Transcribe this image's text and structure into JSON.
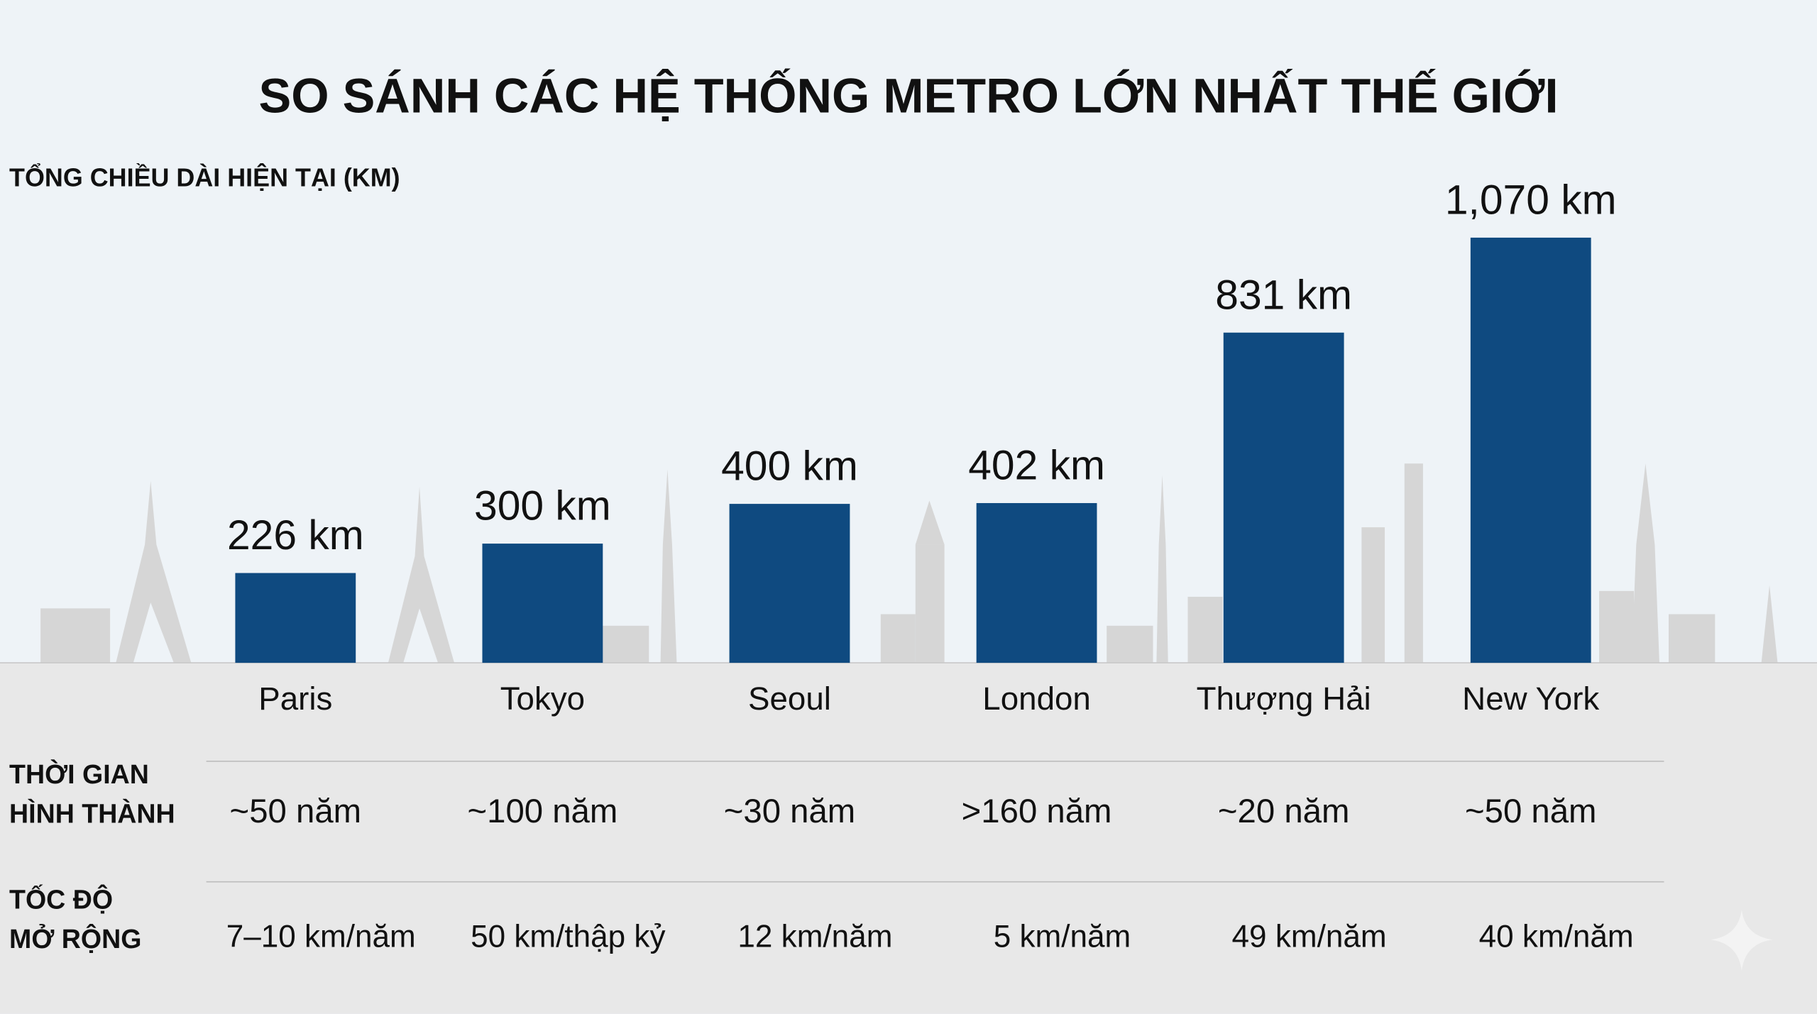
{
  "chart_data": {
    "type": "bar",
    "title": "SO SÁNH CÁC HỆ THỐNG METRO LỚN NHẤT THẾ GIỚI",
    "y_label": "TỔNG CHIỀU DÀI HIỆN TẠI (KM)",
    "categories": [
      "Paris",
      "Tokyo",
      "Seoul",
      "London",
      "Thượng Hải",
      "New York"
    ],
    "values": [
      226,
      300,
      400,
      402,
      831,
      1070
    ],
    "value_labels": [
      "226 km",
      "300 km",
      "400 km",
      "402 km",
      "831 km",
      "1,070 km"
    ],
    "color": "#0f4a80"
  },
  "table": {
    "rows": [
      {
        "label": [
          "THỜI GIAN",
          "HÌNH THÀNH"
        ],
        "cells": [
          "~50 năm",
          "~100 năm",
          "~30 năm",
          ">160 năm",
          "~20 năm",
          "~50 năm"
        ]
      },
      {
        "label": [
          "TỐC ĐỘ",
          "MỞ RỘNG"
        ],
        "cells": [
          "7–10 km/năm",
          "50 km/thập kỷ",
          "12 km/năm",
          "5 km/năm",
          "49 km/năm",
          "40 km/năm"
        ]
      }
    ]
  }
}
